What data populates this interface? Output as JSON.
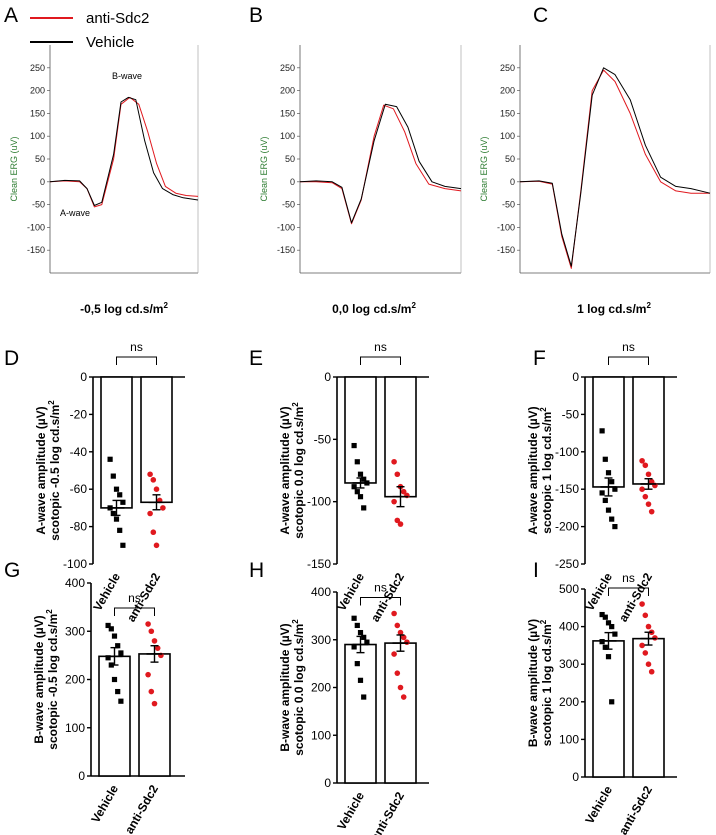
{
  "colors": {
    "anti": "#e0191f",
    "vehicle": "#000000",
    "erg_axis_label": "#2e7d32"
  },
  "legend": [
    {
      "label": "anti-Sdc2",
      "color": "#e0191f"
    },
    {
      "label": "Vehicle",
      "color": "#000000"
    }
  ],
  "erg_ylabel": "Clean  ERG  (uV)",
  "chart_data": [
    {
      "panel": "A",
      "type": "line",
      "xlabel": "-0,5 log cd.s/m",
      "xlabel_sup": "2",
      "ylabel": "Clean  ERG  (uV)",
      "ylim": [
        -200,
        300
      ],
      "yticks": [
        -150,
        -100,
        -50,
        0,
        50,
        100,
        150,
        200,
        250
      ],
      "annotations": [
        "B-wave",
        "A-wave"
      ],
      "series": [
        {
          "name": "anti-Sdc2",
          "x": [
            0,
            0.1,
            0.2,
            0.25,
            0.3,
            0.35,
            0.43,
            0.48,
            0.54,
            0.6,
            0.66,
            0.72,
            0.78,
            0.85,
            0.92,
            1.0
          ],
          "y": [
            0,
            2,
            0,
            -15,
            -55,
            -50,
            50,
            170,
            185,
            170,
            110,
            40,
            -10,
            -25,
            -30,
            -32
          ]
        },
        {
          "name": "Vehicle",
          "x": [
            0,
            0.1,
            0.2,
            0.25,
            0.3,
            0.35,
            0.43,
            0.48,
            0.53,
            0.58,
            0.64,
            0.7,
            0.76,
            0.83,
            0.9,
            1.0
          ],
          "y": [
            0,
            3,
            2,
            -15,
            -52,
            -45,
            60,
            175,
            185,
            180,
            90,
            20,
            -15,
            -28,
            -35,
            -40
          ]
        }
      ]
    },
    {
      "panel": "B",
      "type": "line",
      "xlabel": "0,0 log cd.s/m",
      "xlabel_sup": "2",
      "ylabel": "Clean  ERG  (uV)",
      "ylim": [
        -200,
        300
      ],
      "yticks": [
        -150,
        -100,
        -50,
        0,
        50,
        100,
        150,
        200,
        250
      ],
      "series": [
        {
          "name": "anti-Sdc2",
          "x": [
            0,
            0.1,
            0.2,
            0.26,
            0.32,
            0.38,
            0.46,
            0.52,
            0.58,
            0.65,
            0.72,
            0.8,
            0.9,
            1.0
          ],
          "y": [
            0,
            0,
            -2,
            -15,
            -92,
            -40,
            100,
            168,
            160,
            110,
            40,
            -5,
            -15,
            -20
          ]
        },
        {
          "name": "Vehicle",
          "x": [
            0,
            0.1,
            0.2,
            0.26,
            0.32,
            0.38,
            0.46,
            0.53,
            0.6,
            0.67,
            0.74,
            0.82,
            0.9,
            1.0
          ],
          "y": [
            0,
            2,
            0,
            -12,
            -90,
            -38,
            90,
            170,
            165,
            120,
            45,
            0,
            -10,
            -15
          ]
        }
      ]
    },
    {
      "panel": "C",
      "type": "line",
      "xlabel": "1 log cd.s/m",
      "xlabel_sup": "2",
      "ylabel": "Clean  ERG  (uV)",
      "ylim": [
        -200,
        300
      ],
      "yticks": [
        -150,
        -100,
        -50,
        0,
        50,
        100,
        150,
        200,
        250
      ],
      "series": [
        {
          "name": "anti-Sdc2",
          "x": [
            0,
            0.1,
            0.17,
            0.22,
            0.27,
            0.32,
            0.38,
            0.44,
            0.5,
            0.58,
            0.66,
            0.74,
            0.82,
            0.9,
            1.0
          ],
          "y": [
            0,
            1,
            -5,
            -120,
            -190,
            -20,
            200,
            245,
            220,
            150,
            60,
            0,
            -20,
            -25,
            -25
          ]
        },
        {
          "name": "Vehicle",
          "x": [
            0,
            0.1,
            0.17,
            0.22,
            0.27,
            0.32,
            0.38,
            0.44,
            0.5,
            0.58,
            0.66,
            0.74,
            0.82,
            0.9,
            1.0
          ],
          "y": [
            0,
            2,
            -3,
            -115,
            -185,
            -25,
            190,
            250,
            235,
            180,
            80,
            10,
            -10,
            -15,
            -25
          ]
        }
      ]
    },
    {
      "panel": "D",
      "type": "bar",
      "categories": [
        "Vehicle",
        "anti-Sdc2"
      ],
      "ylabel": "A-wave amplitude (µV)",
      "ylabel2": "scotopic -0.5 log cd.s/m",
      "ylabel_sup": "2",
      "ylim": [
        -100,
        0
      ],
      "yticks": [
        0,
        -20,
        -40,
        -60,
        -80,
        -100
      ],
      "means": [
        -70,
        -67
      ],
      "sem": [
        4,
        4
      ],
      "points": [
        [
          -44,
          -53,
          -60,
          -63,
          -67,
          -70,
          -73,
          -76,
          -82,
          -90
        ],
        [
          -52,
          -55,
          -60,
          -66,
          -70,
          -73,
          -83,
          -90
        ]
      ],
      "significance": "ns"
    },
    {
      "panel": "E",
      "type": "bar",
      "categories": [
        "Vehicle",
        "anti-Sdc2"
      ],
      "ylabel": "A-wave amplitude (µV)",
      "ylabel2": "scotopic 0.0 log cd.s/m",
      "ylabel_sup": "2",
      "ylim": [
        -150,
        0
      ],
      "yticks": [
        0,
        -50,
        -100,
        -150
      ],
      "means": [
        -85,
        -96
      ],
      "sem": [
        4,
        8
      ],
      "points": [
        [
          -55,
          -68,
          -78,
          -82,
          -85,
          -88,
          -92,
          -96,
          -105
        ],
        [
          -68,
          -78,
          -88,
          -92,
          -95,
          -100,
          -115,
          -118
        ]
      ],
      "significance": "ns"
    },
    {
      "panel": "F",
      "type": "bar",
      "categories": [
        "Vehicle",
        "anti-Sdc2"
      ],
      "ylabel": "A-wave amplitude (µV)",
      "ylabel2": "scotopic 1 log cd.s/m",
      "ylabel_sup": "2",
      "ylim": [
        -250,
        0
      ],
      "yticks": [
        0,
        -50,
        -100,
        -150,
        -200,
        -250
      ],
      "means": [
        -147,
        -143
      ],
      "sem": [
        12,
        7
      ],
      "points": [
        [
          -72,
          -110,
          -128,
          -140,
          -150,
          -155,
          -165,
          -178,
          -190,
          -200
        ],
        [
          -112,
          -118,
          -130,
          -140,
          -145,
          -150,
          -160,
          -170,
          -180
        ]
      ],
      "significance": "ns"
    },
    {
      "panel": "G",
      "type": "bar",
      "categories": [
        "Vehicle",
        "anti-Sdc2"
      ],
      "ylabel": "B-wave amplitude (µV)",
      "ylabel2": "scotopic -0.5 log cd.s/m",
      "ylabel_sup": "2",
      "ylim": [
        0,
        400
      ],
      "yticks": [
        0,
        100,
        200,
        300,
        400
      ],
      "means": [
        248,
        253
      ],
      "sem": [
        18,
        17
      ],
      "points": [
        [
          312,
          305,
          290,
          270,
          255,
          245,
          230,
          200,
          175,
          155
        ],
        [
          315,
          300,
          280,
          265,
          250,
          210,
          175,
          150
        ]
      ],
      "significance": "ns"
    },
    {
      "panel": "H",
      "type": "bar",
      "categories": [
        "Vehicle",
        "anti-Sdc2"
      ],
      "ylabel": "B-wave amplitude (µV)",
      "ylabel2": "scotopic 0.0 log cd.s/m",
      "ylabel_sup": "2",
      "ylim": [
        0,
        400
      ],
      "yticks": [
        0,
        100,
        200,
        300,
        400
      ],
      "means": [
        290,
        293
      ],
      "sem": [
        17,
        17
      ],
      "points": [
        [
          345,
          330,
          315,
          305,
          295,
          285,
          250,
          215,
          180
        ],
        [
          355,
          330,
          315,
          305,
          295,
          270,
          230,
          200,
          180
        ]
      ],
      "significance": "ns"
    },
    {
      "panel": "I",
      "type": "bar",
      "categories": [
        "Vehicle",
        "anti-Sdc2"
      ],
      "ylabel": "B-wave amplitude (µV)",
      "ylabel2": "scotopic 1 log cd.s/m",
      "ylabel_sup": "2",
      "ylim": [
        0,
        500
      ],
      "yticks": [
        0,
        100,
        200,
        300,
        400,
        500
      ],
      "means": [
        362,
        368
      ],
      "sem": [
        22,
        17
      ],
      "points": [
        [
          432,
          425,
          410,
          400,
          380,
          360,
          345,
          320,
          200
        ],
        [
          460,
          430,
          400,
          385,
          370,
          350,
          330,
          300,
          280
        ]
      ],
      "significance": "ns"
    }
  ]
}
